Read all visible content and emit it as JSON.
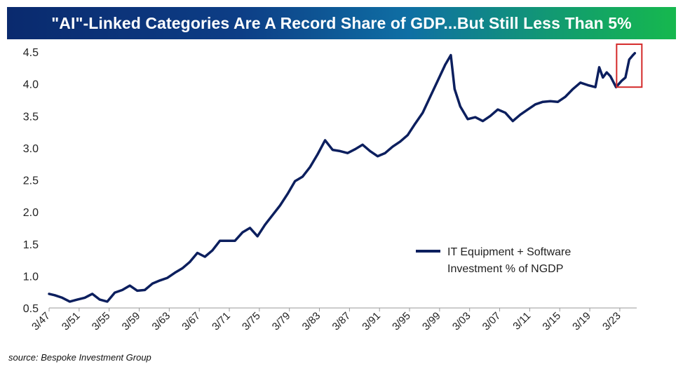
{
  "title": "\"AI\"-Linked Categories Are A Record Share of GDP...But Still Less Than 5%",
  "source": "source: Bespoke Investment Group",
  "colors": {
    "line": "#0c1f5e",
    "highlight_box": "#d42a2a",
    "title_start": "#0a2a6e",
    "title_end": "#16b84e"
  },
  "chart_data": {
    "type": "line",
    "title": "\"AI\"-Linked Categories Are A Record Share of GDP...But Still Less Than 5%",
    "xlabel": "",
    "ylabel": "",
    "ylim": [
      0.5,
      4.5
    ],
    "yticks": [
      "0.5",
      "1.0",
      "1.5",
      "2.0",
      "2.5",
      "3.0",
      "3.5",
      "4.0",
      "4.5"
    ],
    "xlim": [
      1947.25,
      2025.5
    ],
    "xticks": [
      "3/47",
      "3/51",
      "3/55",
      "3/59",
      "3/63",
      "3/67",
      "3/71",
      "3/75",
      "3/79",
      "3/83",
      "3/87",
      "3/91",
      "3/95",
      "3/99",
      "3/03",
      "3/07",
      "3/11",
      "3/15",
      "3/19",
      "3/23"
    ],
    "legend": {
      "position": "right-center",
      "entry": "IT Equipment + Software Investment % of NGDP",
      "lines": [
        "IT Equipment + Software",
        "Investment % of NGDP"
      ]
    },
    "grid": false,
    "highlight": "Most recent readings (2024-2025) outlined in red",
    "series": [
      {
        "name": "IT Equipment + Software Investment % of NGDP",
        "x": [
          1947.25,
          1948.0,
          1949.0,
          1950.0,
          1951.0,
          1952.0,
          1953.0,
          1954.0,
          1955.0,
          1956.0,
          1957.0,
          1958.0,
          1959.0,
          1960.0,
          1961.0,
          1962.0,
          1963.0,
          1964.0,
          1965.0,
          1966.0,
          1967.0,
          1968.0,
          1969.0,
          1970.0,
          1971.0,
          1972.0,
          1973.0,
          1974.0,
          1975.0,
          1976.0,
          1977.0,
          1978.0,
          1979.0,
          1980.0,
          1981.0,
          1982.0,
          1983.0,
          1984.0,
          1985.0,
          1986.0,
          1987.0,
          1988.0,
          1989.0,
          1990.0,
          1991.0,
          1992.0,
          1993.0,
          1994.0,
          1995.0,
          1996.0,
          1997.0,
          1998.0,
          1999.0,
          2000.0,
          2000.75,
          2001.25,
          2002.0,
          2003.0,
          2004.0,
          2005.0,
          2006.0,
          2007.0,
          2008.0,
          2009.0,
          2010.0,
          2011.0,
          2012.0,
          2013.0,
          2014.0,
          2015.0,
          2016.0,
          2017.0,
          2018.0,
          2019.0,
          2020.0,
          2020.5,
          2021.0,
          2021.5,
          2022.0,
          2022.75,
          2023.5,
          2024.0,
          2024.5,
          2025.0,
          2025.25
        ],
        "values": [
          0.72,
          0.7,
          0.66,
          0.6,
          0.63,
          0.66,
          0.72,
          0.63,
          0.6,
          0.74,
          0.78,
          0.85,
          0.77,
          0.78,
          0.88,
          0.93,
          0.97,
          1.05,
          1.12,
          1.22,
          1.36,
          1.3,
          1.4,
          1.55,
          1.55,
          1.55,
          1.68,
          1.75,
          1.62,
          1.8,
          1.95,
          2.1,
          2.28,
          2.48,
          2.55,
          2.7,
          2.9,
          3.12,
          2.97,
          2.95,
          2.92,
          2.98,
          3.05,
          2.95,
          2.87,
          2.92,
          3.02,
          3.1,
          3.2,
          3.38,
          3.55,
          3.8,
          4.05,
          4.3,
          4.45,
          3.92,
          3.65,
          3.45,
          3.48,
          3.42,
          3.5,
          3.6,
          3.55,
          3.42,
          3.52,
          3.6,
          3.68,
          3.72,
          3.73,
          3.72,
          3.8,
          3.92,
          4.02,
          3.98,
          3.95,
          4.26,
          4.1,
          4.18,
          4.12,
          3.95,
          4.05,
          4.1,
          4.38,
          4.45,
          4.48
        ]
      }
    ]
  }
}
